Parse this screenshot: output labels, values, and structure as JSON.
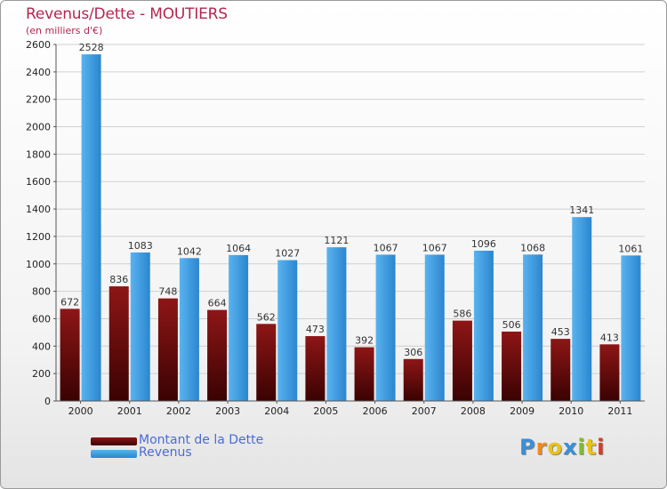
{
  "header": {
    "title": "Revenus/Dette - MOUTIERS",
    "subtitle": "(en milliers d'€)"
  },
  "chart_data": {
    "type": "bar",
    "categories": [
      "2000",
      "2001",
      "2002",
      "2003",
      "2004",
      "2005",
      "2006",
      "2007",
      "2008",
      "2009",
      "2010",
      "2011"
    ],
    "series": [
      {
        "name": "Montant de la Dette",
        "values": [
          672,
          836,
          748,
          664,
          562,
          473,
          392,
          306,
          586,
          506,
          453,
          413
        ],
        "color": "#7a0d0d"
      },
      {
        "name": "Revenus",
        "values": [
          2528,
          1083,
          1042,
          1064,
          1027,
          1121,
          1067,
          1067,
          1096,
          1068,
          1341,
          1061
        ],
        "color": "#3d9be0"
      }
    ],
    "ylim": [
      0,
      2600
    ],
    "yticks": [
      0,
      200,
      400,
      600,
      800,
      1000,
      1200,
      1400,
      1600,
      1800,
      2000,
      2200,
      2400,
      2600
    ],
    "grid": true,
    "legend_position": "bottom-left"
  },
  "legend": {
    "items": [
      {
        "label": "Montant de la Dette",
        "color": "#5a0a0a"
      },
      {
        "label": "Revenus",
        "color": "#3d9be0"
      }
    ]
  },
  "logo": {
    "letters": [
      "P",
      "r",
      "o",
      "x",
      "i",
      "t",
      "i"
    ],
    "colors": [
      "#3a8fd6",
      "#f08a1c",
      "#e7c21a",
      "#3a8fd6",
      "#7bbf2a",
      "#e7c21a",
      "#d83a2a"
    ]
  }
}
